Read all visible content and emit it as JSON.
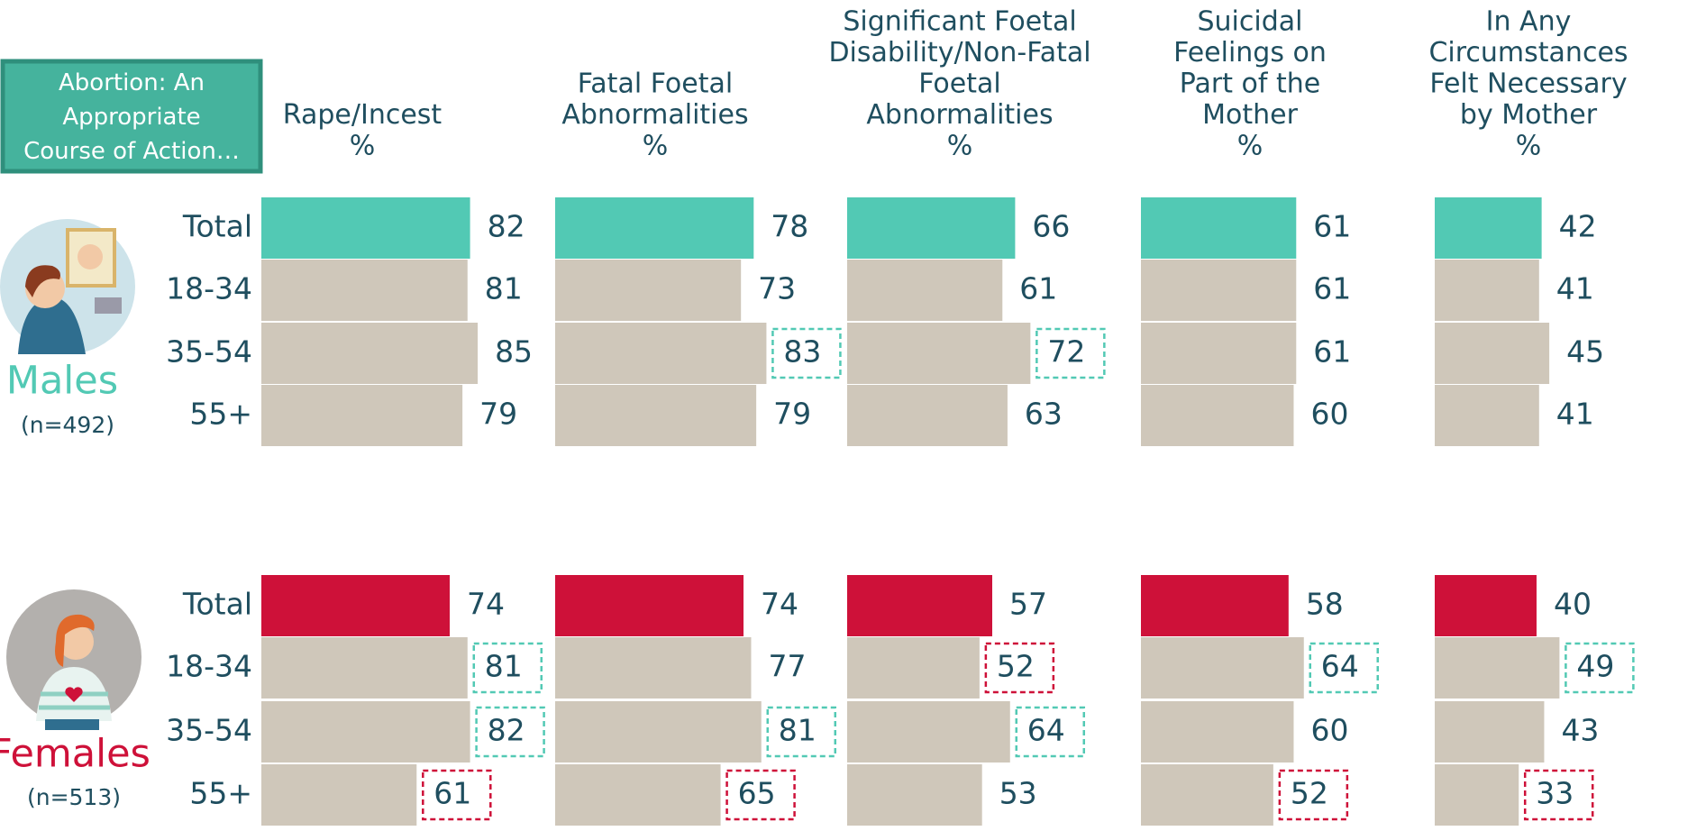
{
  "chart_data": {
    "type": "bar",
    "title": "Abortion: An Appropriate Course of Action…",
    "categories": [
      "Total",
      "18-34",
      "35-54",
      "55+"
    ],
    "sub_color": "#cfc7ba",
    "groups": [
      {
        "name": "Males",
        "note": "(n=492)",
        "color": "#52c9b4"
      },
      {
        "name": "Females",
        "note": "(n=513)",
        "color": "#ce1139"
      }
    ],
    "columns": [
      {
        "title": [
          "Rape/Incest",
          "%"
        ],
        "series": [
          {
            "values": [
              82,
              81,
              85,
              79
            ],
            "box_colors": [
              null,
              null,
              null,
              null
            ]
          },
          {
            "values": [
              74,
              81,
              82,
              61
            ],
            "box_colors": [
              null,
              "#52c9b4",
              "#52c9b4",
              "#ce1139"
            ]
          }
        ]
      },
      {
        "title": [
          "Fatal Foetal",
          "Abnormalities",
          "%"
        ],
        "series": [
          {
            "values": [
              78,
              73,
              83,
              79
            ],
            "box_colors": [
              null,
              null,
              "#52c9b4",
              null
            ]
          },
          {
            "values": [
              74,
              77,
              81,
              65
            ],
            "box_colors": [
              null,
              null,
              "#52c9b4",
              "#ce1139"
            ]
          }
        ]
      },
      {
        "title": [
          "Significant Foetal",
          "Disability/Non-Fatal",
          "Foetal",
          "Abnormalities",
          "%"
        ],
        "series": [
          {
            "values": [
              66,
              61,
              72,
              63
            ],
            "box_colors": [
              null,
              null,
              "#52c9b4",
              null
            ]
          },
          {
            "values": [
              57,
              52,
              64,
              53
            ],
            "box_colors": [
              null,
              "#ce1139",
              "#52c9b4",
              null
            ]
          }
        ]
      },
      {
        "title": [
          "Suicidal",
          "Feelings on",
          "Part of the",
          "Mother",
          "%"
        ],
        "series": [
          {
            "values": [
              61,
              61,
              61,
              60
            ],
            "box_colors": [
              null,
              null,
              null,
              null
            ]
          },
          {
            "values": [
              58,
              64,
              60,
              52
            ],
            "box_colors": [
              null,
              "#52c9b4",
              null,
              "#ce1139"
            ]
          }
        ]
      },
      {
        "title": [
          "In Any",
          "Circumstances",
          "Felt Necessary",
          "by Mother",
          "%"
        ],
        "series": [
          {
            "values": [
              42,
              41,
              45,
              41
            ],
            "box_colors": [
              null,
              null,
              null,
              null
            ]
          },
          {
            "values": [
              40,
              49,
              43,
              33
            ],
            "box_colors": [
              null,
              "#52c9b4",
              null,
              "#ce1139"
            ]
          }
        ]
      }
    ]
  }
}
